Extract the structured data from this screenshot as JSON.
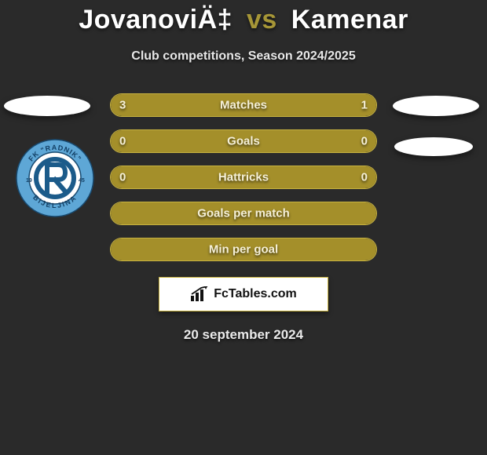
{
  "title": {
    "player1": "JovanoviÄ‡",
    "vs": "vs",
    "player2": "Kamenar"
  },
  "subtitle": "Club competitions, Season 2024/2025",
  "colors": {
    "background": "#2a2a2a",
    "accent_olive": "#a48f2a",
    "accent_border": "#c8b340",
    "text_light": "#f5f0d8",
    "white": "#ffffff"
  },
  "bars": [
    {
      "label": "Matches",
      "left_value": "3",
      "right_value": "1",
      "left_pct": 75,
      "right_pct": 25,
      "show_values": true
    },
    {
      "label": "Goals",
      "left_value": "0",
      "right_value": "0",
      "left_pct": 0,
      "right_pct": 0,
      "show_values": true,
      "full_fill": true
    },
    {
      "label": "Hattricks",
      "left_value": "0",
      "right_value": "0",
      "left_pct": 0,
      "right_pct": 0,
      "show_values": true,
      "full_fill": true
    },
    {
      "label": "Goals per match",
      "left_value": "",
      "right_value": "",
      "left_pct": 0,
      "right_pct": 0,
      "show_values": false,
      "full_fill": true
    },
    {
      "label": "Min per goal",
      "left_value": "",
      "right_value": "",
      "left_pct": 0,
      "right_pct": 0,
      "show_values": false,
      "full_fill": true
    }
  ],
  "brand": "FcTables.com",
  "date": "20 september 2024",
  "badge": {
    "club_top": "FK \"RADNIK\"",
    "year": "1945",
    "club_bottom": "BIJELJINA",
    "ring_color": "#5ea7d6",
    "inner_bg": "#ffffff",
    "text_color": "#1b5b8a"
  }
}
